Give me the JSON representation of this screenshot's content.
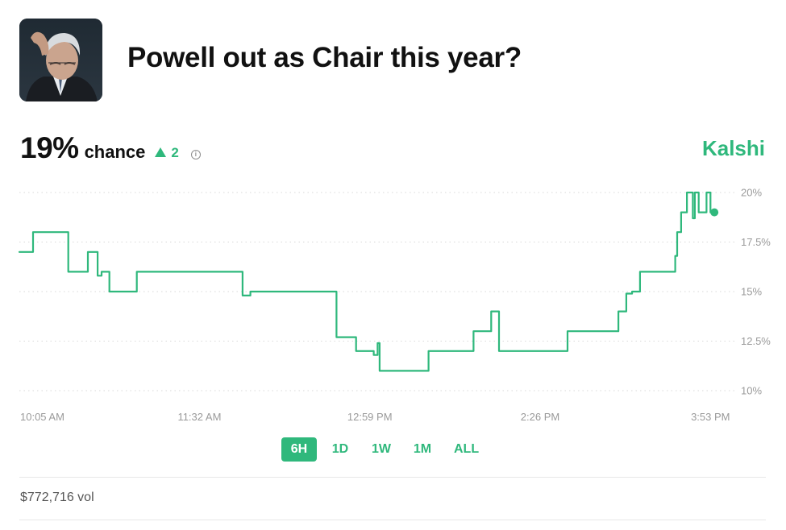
{
  "market": {
    "title": "Powell out as Chair this year?",
    "image_icon": "portrait-photo"
  },
  "probability": {
    "value": "19%",
    "label": "chance",
    "change": "2",
    "change_direction": "up",
    "info_icon": "info-icon"
  },
  "source": {
    "name": "Kalshi"
  },
  "colors": {
    "accent": "#2fb87c",
    "grid": "#d8d8d8",
    "tick": "#9a9a9a"
  },
  "time_ranges": [
    {
      "label": "6H",
      "active": true
    },
    {
      "label": "1D",
      "active": false
    },
    {
      "label": "1W",
      "active": false
    },
    {
      "label": "1M",
      "active": false
    },
    {
      "label": "ALL",
      "active": false
    }
  ],
  "volume": {
    "text": "$772,716 vol"
  },
  "chart_data": {
    "type": "line",
    "title": "",
    "xlabel": "",
    "ylabel": "",
    "ylim": [
      10,
      20
    ],
    "y_ticks": [
      "20%",
      "17.5%",
      "15%",
      "12.5%",
      "10%"
    ],
    "x_ticks": [
      "10:05 AM",
      "11:32 AM",
      "12:59 PM",
      "2:26 PM",
      "3:53 PM"
    ],
    "x_range_minutes_from_first_tick": [
      -5,
      359
    ],
    "grid": "horizontal-dotted",
    "series": [
      {
        "name": "",
        "step": true,
        "end_marker": true,
        "points": [
          [
            -5,
            17
          ],
          [
            2,
            17
          ],
          [
            2,
            18
          ],
          [
            20,
            18
          ],
          [
            20,
            16
          ],
          [
            30,
            16
          ],
          [
            30,
            17
          ],
          [
            35,
            17
          ],
          [
            35,
            15.8
          ],
          [
            37,
            15.8
          ],
          [
            37,
            16
          ],
          [
            41,
            16
          ],
          [
            41,
            15
          ],
          [
            55,
            15
          ],
          [
            55,
            16
          ],
          [
            109,
            16
          ],
          [
            109,
            14.8
          ],
          [
            113,
            14.8
          ],
          [
            113,
            15
          ],
          [
            157,
            15
          ],
          [
            157,
            12.7
          ],
          [
            167,
            12.7
          ],
          [
            167,
            12
          ],
          [
            176,
            12
          ],
          [
            176,
            11.8
          ],
          [
            178,
            11.8
          ],
          [
            178,
            12.4
          ],
          [
            179,
            12.4
          ],
          [
            179,
            11
          ],
          [
            204,
            11
          ],
          [
            204,
            12
          ],
          [
            227,
            12
          ],
          [
            227,
            13
          ],
          [
            236,
            13
          ],
          [
            236,
            14
          ],
          [
            240,
            14
          ],
          [
            240,
            12
          ],
          [
            275,
            12
          ],
          [
            275,
            13
          ],
          [
            301,
            13
          ],
          [
            301,
            14
          ],
          [
            305,
            14
          ],
          [
            305,
            14.9
          ],
          [
            308,
            14.9
          ],
          [
            308,
            15
          ],
          [
            312,
            15
          ],
          [
            312,
            16
          ],
          [
            330,
            16
          ],
          [
            330,
            16.8
          ],
          [
            331,
            16.8
          ],
          [
            331,
            18
          ],
          [
            333,
            18
          ],
          [
            333,
            19
          ],
          [
            336,
            19
          ],
          [
            336,
            20
          ],
          [
            339,
            20
          ],
          [
            339,
            18.7
          ],
          [
            340,
            18.7
          ],
          [
            340,
            20
          ],
          [
            342,
            20
          ],
          [
            342,
            19
          ],
          [
            346,
            19
          ],
          [
            346,
            20
          ],
          [
            348,
            20
          ],
          [
            348,
            19
          ],
          [
            350,
            19
          ]
        ]
      }
    ]
  }
}
